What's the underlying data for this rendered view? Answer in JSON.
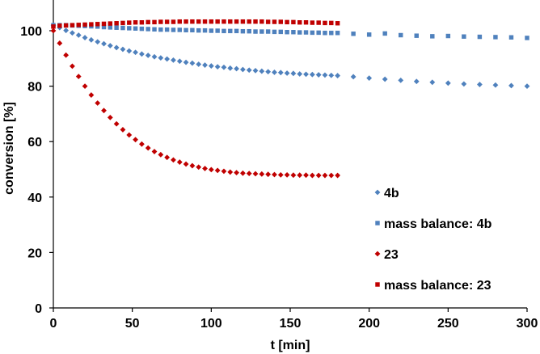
{
  "chart_data": {
    "type": "scatter",
    "xlabel": "t [min]",
    "ylabel": "conversion [%]",
    "xlim": [
      0,
      300
    ],
    "ylim": [
      0,
      107
    ],
    "x_ticks": [
      0,
      50,
      100,
      150,
      200,
      250,
      300
    ],
    "y_ticks": [
      0,
      20,
      40,
      60,
      80,
      100
    ],
    "grid": false,
    "legend_position": "center-right",
    "series": [
      {
        "name": "4b",
        "marker": "diamond",
        "color": "#4F81BD",
        "x": [
          0,
          4,
          8,
          12,
          16,
          20,
          24,
          28,
          32,
          36,
          40,
          44,
          48,
          52,
          56,
          60,
          64,
          68,
          72,
          76,
          80,
          84,
          88,
          92,
          96,
          100,
          104,
          108,
          112,
          116,
          120,
          124,
          128,
          132,
          136,
          140,
          144,
          148,
          152,
          156,
          160,
          164,
          168,
          172,
          176,
          180,
          190,
          200,
          210,
          220,
          230,
          240,
          250,
          260,
          270,
          280,
          290,
          300
        ],
        "y": [
          102,
          101.1,
          100.1,
          99.2,
          98.4,
          97.5,
          96.7,
          96,
          95.3,
          94.6,
          93.9,
          93.3,
          92.7,
          92.2,
          91.6,
          91.1,
          90.6,
          90.2,
          89.8,
          89.4,
          89,
          88.6,
          88.3,
          87.9,
          87.6,
          87.3,
          87,
          86.8,
          86.5,
          86.3,
          86,
          85.8,
          85.6,
          85.4,
          85.2,
          85,
          84.9,
          84.7,
          84.6,
          84.4,
          84.3,
          84.2,
          84.1,
          84,
          83.9,
          83.8,
          83.4,
          82.9,
          82.5,
          82.1,
          81.7,
          81.4,
          81.1,
          80.8,
          80.6,
          80.4,
          80.2,
          80
        ]
      },
      {
        "name": "mass balance: 4b",
        "marker": "square",
        "color": "#4F81BD",
        "x": [
          0,
          4,
          8,
          12,
          16,
          20,
          24,
          28,
          32,
          36,
          40,
          44,
          48,
          52,
          56,
          60,
          64,
          68,
          72,
          76,
          80,
          84,
          88,
          92,
          96,
          100,
          104,
          108,
          112,
          116,
          120,
          124,
          128,
          132,
          136,
          140,
          144,
          148,
          152,
          156,
          160,
          164,
          168,
          172,
          176,
          180,
          190,
          200,
          210,
          220,
          230,
          240,
          250,
          260,
          270,
          280,
          290,
          300
        ],
        "y": [
          102,
          102,
          102,
          101.9,
          101.8,
          101.7,
          101.6,
          101.5,
          101.3,
          101.2,
          101.1,
          101,
          100.9,
          100.8,
          100.7,
          100.6,
          100.5,
          100.4,
          100.4,
          100.3,
          100.3,
          100.2,
          100.2,
          100.1,
          100.1,
          100,
          100,
          99.9,
          99.9,
          99.9,
          99.8,
          99.8,
          99.7,
          99.7,
          99.7,
          99.6,
          99.6,
          99.5,
          99.5,
          99.4,
          99.4,
          99.3,
          99.3,
          99.2,
          99.2,
          99.2,
          98.9,
          98.6,
          99,
          98.4,
          98.2,
          98,
          98.1,
          97.9,
          97.8,
          97.7,
          97.6,
          97.4
        ]
      },
      {
        "name": "23",
        "marker": "diamond",
        "color": "#C00000",
        "x": [
          0,
          4,
          8,
          12,
          16,
          20,
          24,
          28,
          32,
          36,
          40,
          44,
          48,
          52,
          56,
          60,
          64,
          68,
          72,
          76,
          80,
          84,
          88,
          92,
          96,
          100,
          104,
          108,
          112,
          116,
          120,
          124,
          128,
          132,
          136,
          140,
          144,
          148,
          152,
          156,
          160,
          164,
          168,
          172,
          176,
          180
        ],
        "y": [
          100,
          95.5,
          91.2,
          87.2,
          83.5,
          80,
          76.8,
          73.9,
          71.2,
          68.7,
          66.4,
          64.3,
          62.4,
          60.7,
          59.1,
          57.7,
          56.4,
          55.3,
          54.3,
          53.4,
          52.6,
          51.9,
          51.3,
          50.8,
          50.3,
          49.9,
          49.6,
          49.3,
          49,
          48.8,
          48.6,
          48.5,
          48.4,
          48.3,
          48.2,
          48.1,
          48,
          48,
          47.9,
          47.9,
          47.9,
          47.8,
          47.8,
          47.8,
          47.8,
          47.8
        ]
      },
      {
        "name": "mass balance: 23",
        "marker": "square",
        "color": "#C00000",
        "x": [
          0,
          4,
          8,
          12,
          16,
          20,
          24,
          28,
          32,
          36,
          40,
          44,
          48,
          52,
          56,
          60,
          64,
          68,
          72,
          76,
          80,
          84,
          88,
          92,
          96,
          100,
          104,
          108,
          112,
          116,
          120,
          124,
          128,
          132,
          136,
          140,
          144,
          148,
          152,
          156,
          160,
          164,
          168,
          172,
          176,
          180
        ],
        "y": [
          101.5,
          101.8,
          101.9,
          102,
          102.1,
          102.2,
          102.3,
          102.4,
          102.5,
          102.6,
          102.7,
          102.8,
          102.9,
          103,
          103,
          103.1,
          103.1,
          103.2,
          103.2,
          103.2,
          103.3,
          103.3,
          103.3,
          103.3,
          103.3,
          103.3,
          103.3,
          103.3,
          103.3,
          103.3,
          103.3,
          103.3,
          103.3,
          103.3,
          103.2,
          103.2,
          103.2,
          103.1,
          103.1,
          103,
          103,
          102.9,
          102.9,
          102.8,
          102.8,
          102.7
        ]
      }
    ]
  }
}
